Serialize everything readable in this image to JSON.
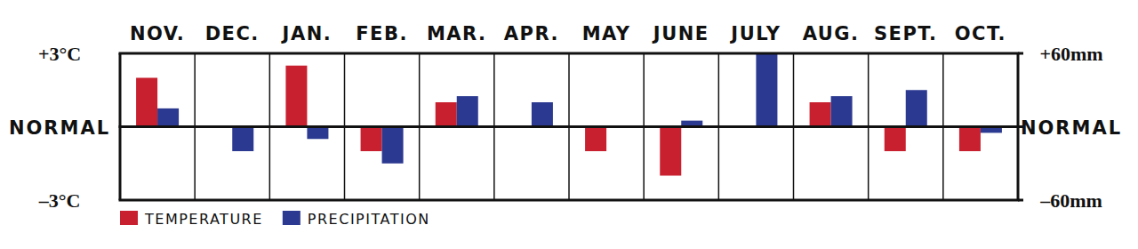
{
  "chart_data": {
    "type": "bar",
    "categories": [
      "NOV.",
      "DEC.",
      "JAN.",
      "FEB.",
      "MAR.",
      "APR.",
      "MAY",
      "JUNE",
      "JULY",
      "AUG.",
      "SEPT.",
      "OCT."
    ],
    "series": [
      {
        "name": "TEMPERATURE",
        "color": "#c8202f",
        "values": [
          2,
          0,
          2.5,
          -1,
          1,
          0,
          -1,
          -2,
          0,
          1,
          -1,
          -1
        ]
      },
      {
        "name": "PRECIPITATION",
        "color": "#2b3990",
        "axis": "y2",
        "values": [
          15,
          -20,
          -10,
          -30,
          25,
          20,
          0,
          5,
          60,
          25,
          30,
          -5
        ]
      }
    ],
    "ylim": [
      -3,
      3
    ],
    "yticks": [
      {
        "value": 3,
        "label": "+3°C"
      },
      {
        "value": 0,
        "label": "NORMAL"
      },
      {
        "value": -3,
        "label": "–3°C"
      }
    ],
    "y2lim": [
      -60,
      60
    ],
    "y2ticks": [
      {
        "value": 60,
        "label": "+60mm"
      },
      {
        "value": 0,
        "label": "NORMAL"
      },
      {
        "value": -60,
        "label": "–60mm"
      }
    ],
    "legend": "bottom"
  }
}
